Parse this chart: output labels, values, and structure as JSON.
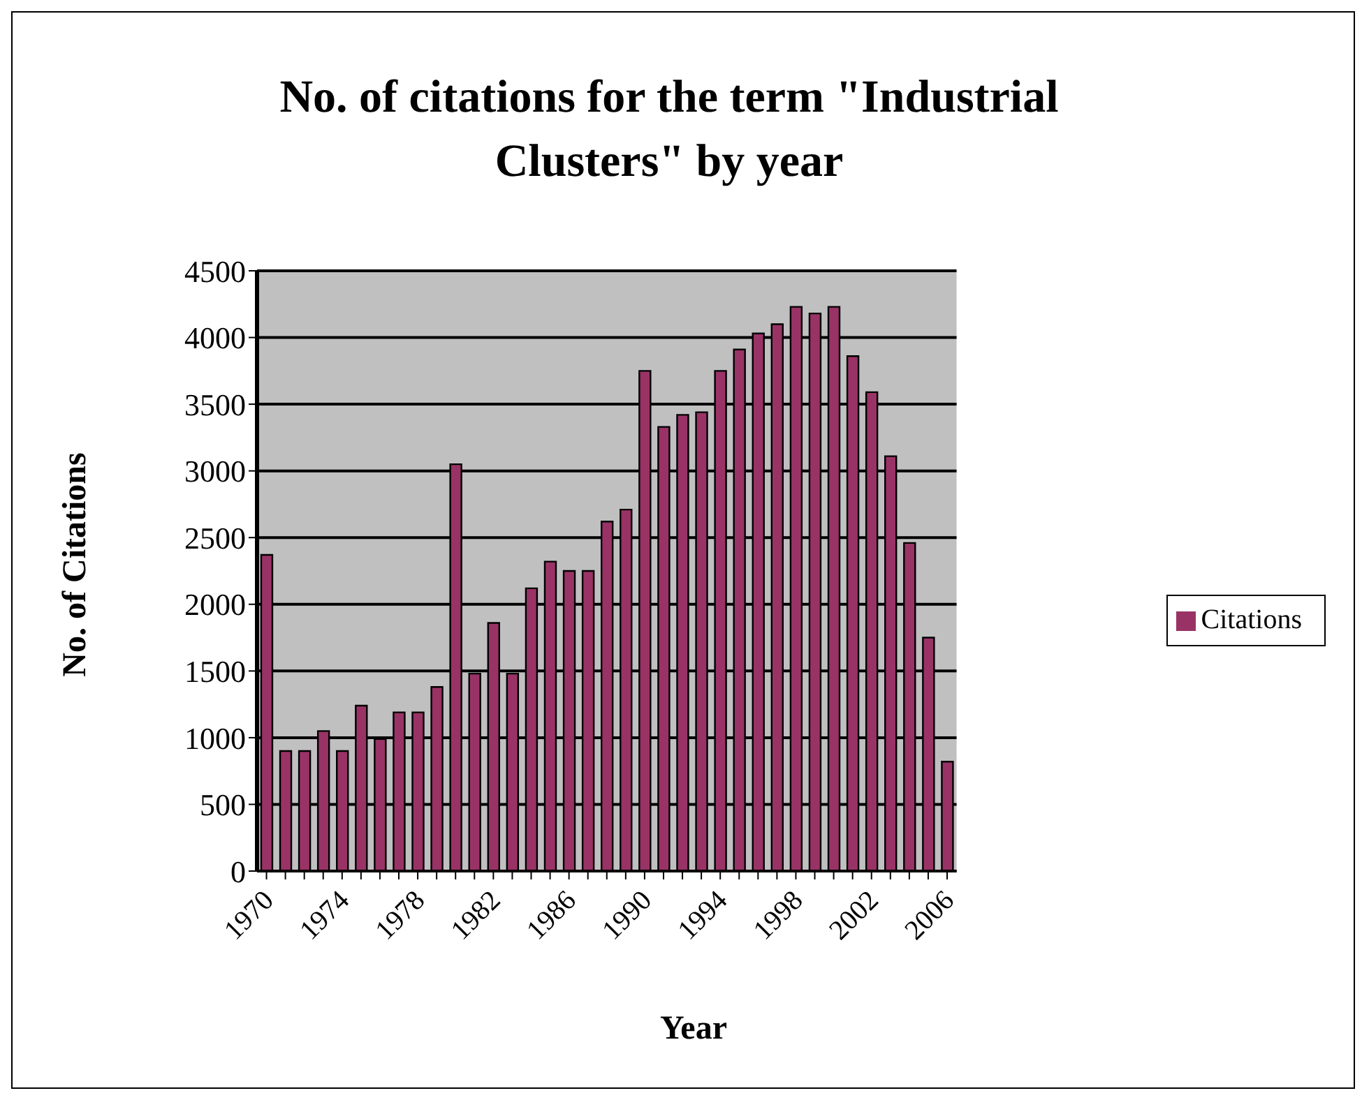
{
  "chart_data": {
    "type": "bar",
    "title": "No. of citations for the term \"Industrial Clusters\" by year",
    "xlabel": "Year",
    "ylabel": "No. of Citations",
    "categories": [
      "1970",
      null,
      null,
      null,
      "1974",
      null,
      null,
      null,
      "1978",
      null,
      null,
      null,
      "1982",
      null,
      null,
      null,
      "1986",
      null,
      null,
      null,
      "1990",
      null,
      null,
      null,
      "1994",
      null,
      null,
      null,
      "1998",
      null,
      null,
      null,
      "2002",
      null,
      null,
      null,
      "2006"
    ],
    "series": [
      {
        "name": "Citations",
        "color": "#993366",
        "values": [
          2370,
          900,
          900,
          1050,
          900,
          1240,
          990,
          1190,
          1190,
          1380,
          3050,
          1480,
          1860,
          1480,
          2120,
          2320,
          2250,
          2250,
          2620,
          2710,
          3750,
          3330,
          3420,
          3440,
          3750,
          3910,
          4030,
          4100,
          4230,
          4180,
          4230,
          3860,
          3590,
          3110,
          2460,
          1750,
          820
        ]
      }
    ],
    "ylim": [
      0,
      4500
    ],
    "yticks": [
      0,
      500,
      1000,
      1500,
      2000,
      2500,
      3000,
      3500,
      4000,
      4500
    ],
    "grid": "y",
    "legend": "right"
  }
}
